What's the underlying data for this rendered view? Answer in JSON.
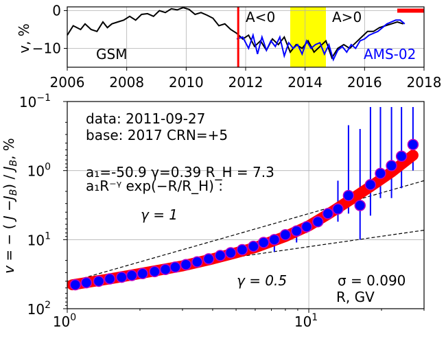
{
  "chart_data": [
    {
      "type": "line",
      "xlabel": "",
      "ylabel": "v, %",
      "xlim": [
        2006,
        2018
      ],
      "ylim": [
        -15,
        1
      ],
      "xticks": [
        "2006",
        "2008",
        "2010",
        "2012",
        "2014",
        "2016",
        "2018"
      ],
      "yticks": [
        "0",
        "−10"
      ],
      "grid": true,
      "series": [
        {
          "name": "GSM",
          "color": "#000000",
          "x": [
            2006.0,
            2006.2,
            2006.45,
            2006.6,
            2006.8,
            2007.0,
            2007.2,
            2007.35,
            2007.5,
            2007.7,
            2007.9,
            2008.1,
            2008.3,
            2008.5,
            2008.7,
            2008.9,
            2009.1,
            2009.3,
            2009.5,
            2009.7,
            2009.9,
            2010.1,
            2010.3,
            2010.5,
            2010.7,
            2010.9,
            2011.1,
            2011.3,
            2011.5,
            2011.7,
            2011.9,
            2012.1,
            2012.3,
            2012.5,
            2012.7,
            2012.9,
            2013.1,
            2013.3,
            2013.5,
            2013.7,
            2013.9,
            2014.1,
            2014.3,
            2014.5,
            2014.7,
            2014.9,
            2015.1,
            2015.3,
            2015.5,
            2015.7,
            2015.9,
            2016.1,
            2016.3,
            2016.5,
            2016.7,
            2016.9,
            2017.1,
            2017.3
          ],
          "y": [
            -6.5,
            -4.0,
            -5.0,
            -3.5,
            -5.0,
            -5.5,
            -3.0,
            -4.5,
            -3.5,
            -3.0,
            -2.5,
            -1.5,
            -2.5,
            -1.0,
            -0.8,
            -1.5,
            0.0,
            -0.5,
            0.5,
            0.2,
            0.8,
            0.3,
            -1.0,
            -0.5,
            -1.2,
            -2.0,
            -4.0,
            -3.5,
            -5.0,
            -6.0,
            -7.5,
            -6.5,
            -9.5,
            -8.0,
            -10.5,
            -7.5,
            -9.0,
            -7.0,
            -11.0,
            -9.0,
            -10.0,
            -8.0,
            -11.0,
            -9.5,
            -8.0,
            -12.5,
            -10.0,
            -9.0,
            -10.0,
            -8.5,
            -7.0,
            -5.5,
            -5.5,
            -4.5,
            -4.0,
            -3.5,
            -3.0,
            -3.5
          ]
        },
        {
          "name": "AMS-02",
          "color": "#0000ff",
          "x": [
            2011.7,
            2011.9,
            2012.1,
            2012.25,
            2012.4,
            2012.55,
            2012.7,
            2012.85,
            2013.0,
            2013.15,
            2013.3,
            2013.45,
            2013.6,
            2013.75,
            2013.9,
            2014.05,
            2014.2,
            2014.35,
            2014.5,
            2014.65,
            2014.8,
            2014.95,
            2015.1,
            2015.25,
            2015.4,
            2015.55,
            2015.7,
            2015.85,
            2016.0,
            2016.15,
            2016.3,
            2016.45,
            2016.6,
            2016.75,
            2016.9,
            2017.05,
            2017.2,
            2017.35
          ],
          "y": [
            -7.5,
            -7.0,
            -10.0,
            -6.5,
            -11.5,
            -7.0,
            -10.5,
            -8.0,
            -9.5,
            -7.0,
            -12.0,
            -8.5,
            -10.0,
            -9.0,
            -11.5,
            -8.0,
            -10.0,
            -9.0,
            -8.5,
            -11.5,
            -9.0,
            -13.0,
            -10.5,
            -9.5,
            -11.0,
            -9.0,
            -10.0,
            -8.0,
            -7.5,
            -6.5,
            -6.0,
            -5.5,
            -4.5,
            -3.5,
            -3.0,
            -2.5,
            -2.5,
            -3.5
          ]
        }
      ],
      "markers": {
        "vline_year": 2011.75,
        "vline_color": "#ff0000",
        "highlight_band": [
          2013.5,
          2014.7
        ],
        "highlight_color": "#ffff00",
        "red_bar": [
          2017.1,
          2018.0
        ],
        "red_bar_y": 0
      },
      "annotations": {
        "gsm": "GSM",
        "ams": "AMS-02",
        "a_neg": "A<0",
        "a_pos": "A>0"
      }
    },
    {
      "type": "scatter",
      "xscale": "log",
      "yscale": "log",
      "ylabel": "v = − (J−J_B)/J_B, %",
      "xlim": [
        1,
        30
      ],
      "ylim_inverted": [
        0.1,
        100
      ],
      "xticks": [
        "10^0",
        "10^1"
      ],
      "yticks": [
        "10^−1",
        "10^0",
        "10^1",
        "10^2"
      ],
      "grid": true,
      "point_color": "#0000ff",
      "point_edge": "#c000c0",
      "fit_color": "#ff0000",
      "points": {
        "R": [
          1.08,
          1.2,
          1.35,
          1.5,
          1.68,
          1.85,
          2.05,
          2.3,
          2.55,
          2.8,
          3.1,
          3.45,
          3.85,
          4.3,
          4.75,
          5.3,
          5.9,
          6.5,
          7.2,
          8.0,
          8.9,
          9.8,
          10.9,
          12.0,
          13.2,
          14.6,
          16.3,
          18.0,
          19.8,
          22.0,
          24.2,
          27.0
        ],
        "v": [
          45,
          42,
          40,
          37,
          35,
          33,
          31,
          29,
          27,
          25,
          23,
          21,
          19,
          17,
          15.5,
          14,
          12.5,
          11,
          10,
          8.5,
          7.5,
          6.5,
          5.5,
          4.2,
          3.6,
          2.3,
          3.2,
          1.6,
          1.1,
          0.85,
          0.62,
          0.42
        ],
        "err_low": [
          0,
          0,
          0,
          0,
          0,
          0,
          0,
          0,
          0,
          0,
          0,
          0,
          0,
          0,
          0,
          0,
          0,
          0,
          0,
          0,
          0,
          0,
          0,
          0,
          0,
          0,
          0,
          0,
          0,
          0,
          0,
          0
        ],
        "err_up_v": [
          45,
          42,
          40,
          37,
          35,
          33,
          31,
          29,
          27,
          25,
          23,
          21,
          19,
          17,
          15.5,
          14,
          12.5,
          10,
          9,
          7.5,
          6.5,
          5.5,
          4.7,
          3.8,
          3.0,
          1.8,
          3.0,
          1.3,
          0.9,
          0.7,
          0.52,
          0.42
        ]
      },
      "error_bars": {
        "R": [
          7.2,
          8.0,
          8.9,
          9.8,
          10.9,
          12.0,
          13.2,
          14.6,
          16.3,
          18.0,
          19.8,
          22.0,
          24.2,
          27.0
        ],
        "top": [
          15,
          9,
          11,
          8,
          5,
          3.5,
          1.4,
          0.22,
          0.25,
          0.12,
          0.12,
          0.12,
          0.12,
          0.12
        ],
        "bottom": [
          10,
          8.5,
          7.5,
          6.5,
          5.5,
          4.5,
          5.5,
          4.2,
          10,
          4.5,
          2.5,
          2.5,
          1.8,
          1.0
        ]
      },
      "fit_curve": {
        "R": [
          1.05,
          1.5,
          2.0,
          3.0,
          4.0,
          5.0,
          6.0,
          8.0,
          10.0,
          12.0,
          15.0,
          18.0,
          22.0,
          27.0
        ],
        "v": [
          45,
          37,
          31,
          24,
          19,
          15.5,
          13,
          9,
          6.3,
          4.3,
          2.6,
          1.7,
          1.05,
          0.6
        ]
      },
      "power_laws": [
        {
          "label": "γ = 1",
          "R": [
            1.0,
            30.0
          ],
          "v": [
            42,
            1.4
          ]
        },
        {
          "label": "γ = 0.5",
          "R": [
            1.0,
            30.0
          ],
          "v": [
            40,
            7.3
          ]
        }
      ],
      "annotations": {
        "data_line": "data: 2011-09-27",
        "base_line": "base: 2017   CRN=+5",
        "params": "a₁=-50.9  γ=0.39  R_H = 7.3",
        "formula": "a₁R⁻ᵞ exp(−R/R_H) :",
        "gamma1": "γ = 1",
        "gamma05": "γ = 0.5",
        "sigma": "σ = 0.090",
        "xunit": "R, GV"
      }
    }
  ]
}
